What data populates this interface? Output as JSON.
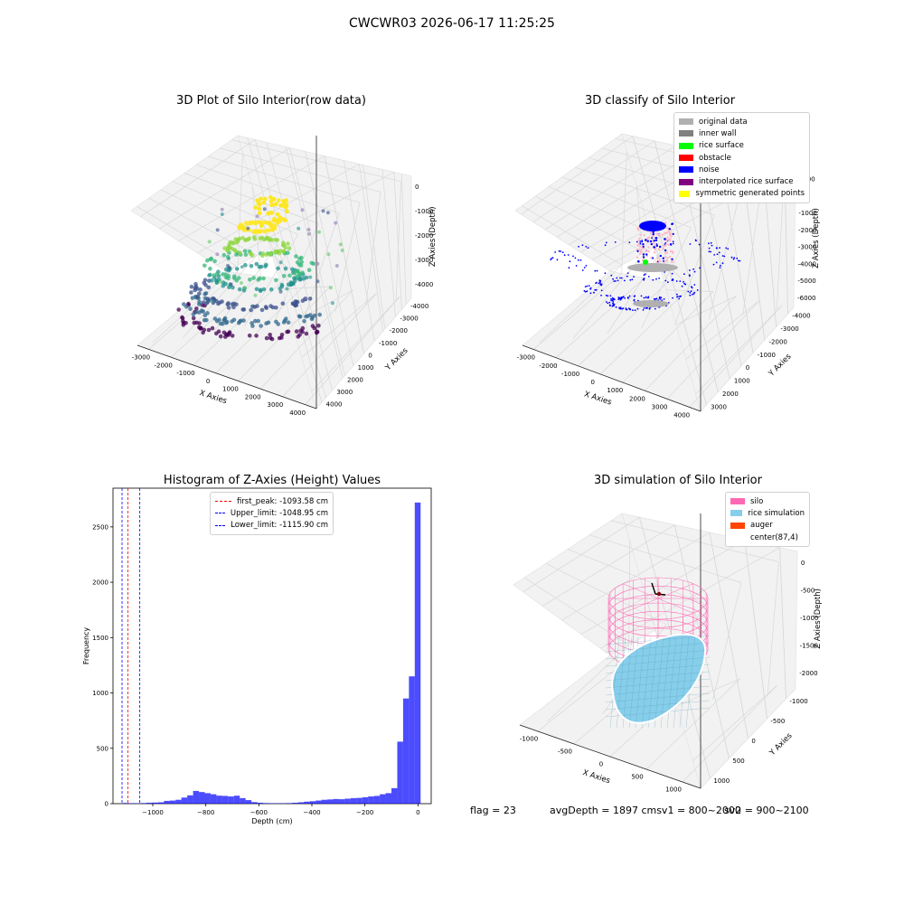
{
  "suptitle": "CWCWR03 2026-06-17 11:25:25",
  "colors": {
    "hist": "#0000ff",
    "grid": "#d8d8d8",
    "pane": "#f2f2f2"
  },
  "panel1": {
    "title": "3D Plot of Silo Interior(row data)",
    "xlabel": "X Axies",
    "ylabel": "Y Axies",
    "zlabel": "Z Axies (Depth)",
    "xticks": [
      "-3000",
      "-2000",
      "-1000",
      "0",
      "1000",
      "2000",
      "3000",
      "4000"
    ],
    "yticks": [
      "4000",
      "3000",
      "2000",
      "1000",
      "0",
      "-1000",
      "-2000",
      "-3000",
      "-4000"
    ],
    "zticks": [
      "0",
      "-1000",
      "-2000",
      "-3000",
      "-4000"
    ]
  },
  "panel2": {
    "title": "3D classify of Silo Interior",
    "xlabel": "X Axies",
    "ylabel": "Y Axies",
    "zlabel": "Z Axies (Depth)",
    "xticks": [
      "-3000",
      "-2000",
      "-1000",
      "0",
      "1000",
      "2000",
      "3000",
      "4000"
    ],
    "yticks": [
      "3000",
      "2000",
      "1000",
      "0",
      "-1000",
      "-2000",
      "-3000",
      "-4000"
    ],
    "zticks": [
      "1000",
      "0",
      "-1000",
      "-2000",
      "-3000",
      "-4000",
      "-5000",
      "-6000"
    ],
    "legend": [
      {
        "label": "original data",
        "color": "#b0b0b0"
      },
      {
        "label": "inner wall",
        "color": "#808080"
      },
      {
        "label": "rice surface",
        "color": "#00ff00"
      },
      {
        "label": "obstacle",
        "color": "#ff0000"
      },
      {
        "label": "noise",
        "color": "#0000ff"
      },
      {
        "label": "interpolated rice surface",
        "color": "#800080"
      },
      {
        "label": "symmetric generated points",
        "color": "#ffff00"
      }
    ]
  },
  "panel3": {
    "title": "Histogram of Z-Axies (Height) Values",
    "xlabel": "Depth (cm)",
    "ylabel": "Frequency",
    "legend": [
      {
        "label": "first_peak: -1093.58 cm",
        "color": "#ff0000"
      },
      {
        "label": "Upper_limit: -1048.95 cm",
        "color": "#0000ff"
      },
      {
        "label": "Lower_limit: -1115.90 cm",
        "color": "#0000ff"
      }
    ]
  },
  "panel4": {
    "title": "3D simulation of Silo Interior",
    "xlabel": "X Axies",
    "ylabel": "Y Axies",
    "zlabel": "Z Axies (Depth)",
    "xticks": [
      "-1000",
      "-500",
      "0",
      "500",
      "1000"
    ],
    "yticks": [
      "1000",
      "500",
      "0",
      "-500",
      "-1000"
    ],
    "zticks": [
      "0",
      "-500",
      "-1000",
      "-1500",
      "-2000"
    ],
    "legend": [
      {
        "label": "silo",
        "color": "#ff69b4"
      },
      {
        "label": "rice simulation",
        "color": "#87ceeb"
      },
      {
        "label": "auger",
        "color": "#ff4500"
      },
      {
        "label": "center(87,4)",
        "color": "#ffffff"
      }
    ]
  },
  "status": {
    "flag": "flag = 23",
    "avg": "avgDepth = 1897 cmsv1 = 800~2000",
    "sv2": "sv2 = 900~2100"
  },
  "chart_data": [
    {
      "type": "scatter",
      "title": "3D Plot of Silo Interior(row data)",
      "xlabel": "X Axies",
      "ylabel": "Y Axies",
      "zlabel": "Z Axies (Depth)",
      "xlim": [
        -3500,
        4000
      ],
      "ylim": [
        -4000,
        4000
      ],
      "zlim": [
        -4500,
        0
      ],
      "clusters": [
        {
          "z": -4200,
          "radius": 1100,
          "color": "#440154"
        },
        {
          "z": -3800,
          "radius": 1000,
          "color": "#31688e"
        },
        {
          "z": -3300,
          "radius": 900,
          "color": "#3b528b"
        },
        {
          "z": -2800,
          "radius": 650,
          "color": "#21918c"
        },
        {
          "z": -2400,
          "radius": 750,
          "color": "#35b779"
        },
        {
          "z": -1700,
          "radius": 450,
          "color": "#90d743"
        },
        {
          "z": -1000,
          "radius": 250,
          "color": "#fde725"
        }
      ]
    },
    {
      "type": "scatter",
      "title": "3D classify of Silo Interior",
      "xlim": [
        -3500,
        4000
      ],
      "ylim": [
        -4000,
        3500
      ],
      "zlim": [
        -6000,
        1000
      ],
      "series": [
        {
          "name": "noise",
          "z_range": [
            -5000,
            -1000
          ]
        },
        {
          "name": "original data",
          "z_range": [
            -4500,
            -2000
          ]
        },
        {
          "name": "rice surface",
          "z_range": [
            -3500,
            -3000
          ]
        }
      ]
    },
    {
      "type": "bar",
      "title": "Histogram of Z-Axies (Height) Values",
      "xlabel": "Depth (cm)",
      "ylabel": "Frequency",
      "xlim": [
        -1150,
        50
      ],
      "ylim": [
        0,
        2850
      ],
      "xticks": [
        -1000,
        -800,
        -600,
        -400,
        -200,
        0
      ],
      "yticks": [
        0,
        500,
        1000,
        1500,
        2000,
        2500
      ],
      "bin_width": 22,
      "bins": [
        [
          -1112,
          6
        ],
        [
          -1090,
          4
        ],
        [
          -1068,
          3
        ],
        [
          -1046,
          5
        ],
        [
          -1024,
          8
        ],
        [
          -1002,
          10
        ],
        [
          -980,
          12
        ],
        [
          -958,
          25
        ],
        [
          -936,
          28
        ],
        [
          -914,
          35
        ],
        [
          -892,
          55
        ],
        [
          -870,
          75
        ],
        [
          -848,
          115
        ],
        [
          -826,
          105
        ],
        [
          -804,
          95
        ],
        [
          -782,
          85
        ],
        [
          -760,
          72
        ],
        [
          -738,
          70
        ],
        [
          -716,
          65
        ],
        [
          -694,
          72
        ],
        [
          -672,
          50
        ],
        [
          -650,
          32
        ],
        [
          -628,
          14
        ],
        [
          -606,
          8
        ],
        [
          -584,
          5
        ],
        [
          -562,
          4
        ],
        [
          -540,
          3
        ],
        [
          -518,
          4
        ],
        [
          -496,
          5
        ],
        [
          -474,
          8
        ],
        [
          -452,
          12
        ],
        [
          -430,
          18
        ],
        [
          -408,
          22
        ],
        [
          -386,
          28
        ],
        [
          -364,
          35
        ],
        [
          -342,
          38
        ],
        [
          -320,
          42
        ],
        [
          -298,
          40
        ],
        [
          -276,
          45
        ],
        [
          -254,
          50
        ],
        [
          -232,
          52
        ],
        [
          -210,
          58
        ],
        [
          -188,
          65
        ],
        [
          -166,
          70
        ],
        [
          -144,
          85
        ],
        [
          -122,
          95
        ],
        [
          -100,
          140
        ],
        [
          -78,
          560
        ],
        [
          -56,
          950
        ],
        [
          -34,
          1150
        ],
        [
          -12,
          2720
        ]
      ],
      "vlines": [
        {
          "label": "first_peak: -1093.58 cm",
          "x": -1093.58
        },
        {
          "label": "Upper_limit: -1048.95 cm",
          "x": -1048.95
        },
        {
          "label": "Lower_limit: -1115.90 cm",
          "x": -1115.9
        }
      ]
    },
    {
      "type": "other",
      "title": "3D simulation of Silo Interior",
      "xlim": [
        -1250,
        1250
      ],
      "ylim": [
        -1250,
        1250
      ],
      "zlim": [
        -2200,
        250
      ],
      "silo": {
        "radius": 1000,
        "z_top": 0,
        "z_bottom": -900
      },
      "rice_surface": {
        "z_range": [
          -1400,
          -2000
        ]
      },
      "center": [
        87,
        4
      ]
    }
  ]
}
